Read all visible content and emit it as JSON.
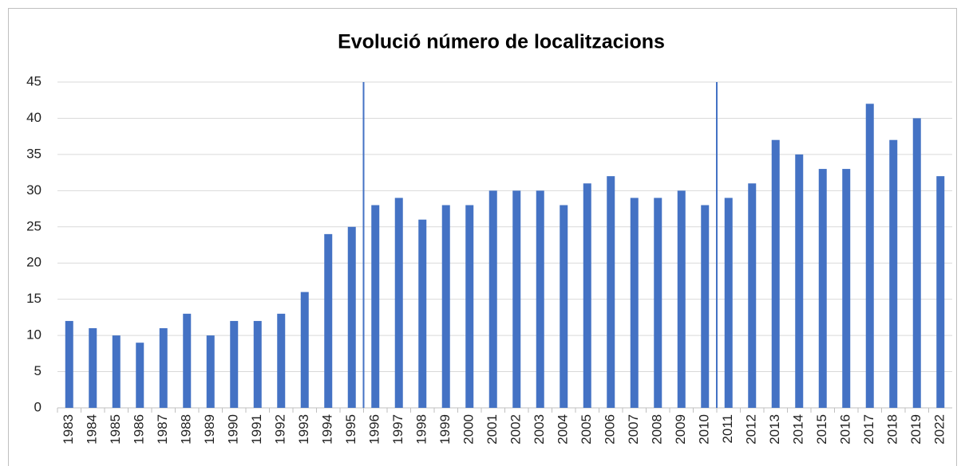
{
  "chart_data": {
    "type": "bar",
    "title": "Evolució número de localitzacions",
    "categories": [
      "1983",
      "1984",
      "1985",
      "1986",
      "1987",
      "1988",
      "1989",
      "1990",
      "1991",
      "1992",
      "1993",
      "1994",
      "1995",
      "1996",
      "1997",
      "1998",
      "1999",
      "2000",
      "2001",
      "2002",
      "2003",
      "2004",
      "2005",
      "2006",
      "2007",
      "2008",
      "2009",
      "2010",
      "2011",
      "2012",
      "2013",
      "2014",
      "2015",
      "2016",
      "2017",
      "2018",
      "2019",
      "2022"
    ],
    "values": [
      12,
      11,
      10,
      9,
      11,
      13,
      10,
      12,
      12,
      13,
      16,
      24,
      25,
      28,
      29,
      26,
      28,
      28,
      30,
      30,
      30,
      28,
      31,
      32,
      29,
      29,
      30,
      28,
      29,
      31,
      37,
      35,
      33,
      33,
      42,
      37,
      40,
      32
    ],
    "color": "#4472c4",
    "ylim": [
      0,
      45
    ],
    "yticks": [
      0,
      5,
      10,
      15,
      20,
      25,
      30,
      35,
      40,
      45
    ],
    "grid": true
  }
}
